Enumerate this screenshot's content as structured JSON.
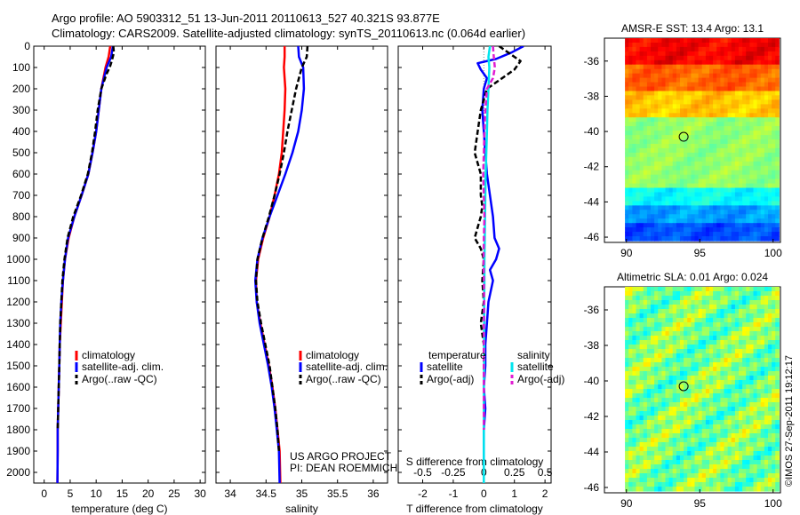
{
  "header": {
    "line1": "Argo profile: AO 5903312_51 13-Jun-2011 20110613_527 40.321S 93.877E",
    "line2": "Climatology: CARS2009. Satellite-adjusted climatology: synTS_20110613.nc (0.064d earlier)"
  },
  "project": {
    "line1": "US ARGO PROJECT",
    "line2": "PI: DEAN ROEMMICH"
  },
  "copyright": "©IMOS 27-Sep-2011 19:12:17",
  "colors": {
    "red": "#ff0000",
    "blue": "#0000ff",
    "black": "#000000",
    "cyan": "#00e5ee",
    "magenta": "#e01cd2"
  },
  "chart_data": [
    {
      "id": "temperature",
      "type": "line",
      "xlabel": "temperature (deg C)",
      "ylabel": "",
      "xlim": [
        -2,
        31
      ],
      "ylim": [
        2050,
        0
      ],
      "xticks": [
        0,
        5,
        10,
        15,
        20,
        25,
        30
      ],
      "yticks": [
        0,
        100,
        200,
        300,
        400,
        500,
        600,
        700,
        800,
        900,
        1000,
        1100,
        1200,
        1300,
        1400,
        1500,
        1600,
        1700,
        1800,
        1900,
        2000
      ],
      "legend": [
        "climatology",
        "satellite-adj. clim.",
        "Argo(..raw -QC)"
      ],
      "series": [
        {
          "name": "climatology",
          "color": "#ff0000",
          "dash": "",
          "x": [
            12.7,
            12.4,
            11.8,
            11.0,
            10.5,
            10.0,
            9.3,
            8.5,
            7.2,
            5.8,
            4.7,
            4.0,
            3.6,
            3.4,
            3.2,
            3.0,
            2.9,
            2.8,
            2.7,
            2.6,
            2.6,
            2.55
          ],
          "y": [
            0,
            50,
            100,
            200,
            300,
            400,
            500,
            600,
            700,
            800,
            900,
            1000,
            1100,
            1200,
            1300,
            1400,
            1500,
            1600,
            1700,
            1800,
            1900,
            2050
          ]
        },
        {
          "name": "satellite-adj. clim.",
          "color": "#0000ff",
          "dash": "",
          "x": [
            13.2,
            12.9,
            12.0,
            11.0,
            10.5,
            10.0,
            9.3,
            8.5,
            7.2,
            5.8,
            4.6,
            4.0,
            3.6,
            3.3,
            3.1,
            3.0,
            2.9,
            2.8,
            2.7,
            2.6,
            2.6,
            2.55
          ],
          "y": [
            0,
            50,
            100,
            200,
            300,
            400,
            500,
            600,
            700,
            800,
            900,
            1000,
            1100,
            1200,
            1300,
            1400,
            1500,
            1600,
            1700,
            1800,
            1900,
            2050
          ]
        },
        {
          "name": "Argo(..raw -QC)",
          "color": "#000000",
          "dash": "6,3",
          "x": [
            13.3,
            13.4,
            13.0,
            12.6,
            12.0,
            11.0,
            10.3,
            9.8,
            9.2,
            8.4,
            7.1,
            5.6,
            4.5,
            3.9,
            3.5,
            3.3,
            3.1,
            3.0,
            2.9,
            2.8,
            2.7,
            2.6
          ],
          "y": [
            0,
            30,
            70,
            100,
            130,
            200,
            300,
            400,
            500,
            600,
            700,
            800,
            900,
            1000,
            1100,
            1200,
            1300,
            1400,
            1500,
            1600,
            1700,
            1800
          ]
        }
      ]
    },
    {
      "id": "salinity",
      "type": "line",
      "xlabel": "salinity",
      "ylabel": "",
      "xlim": [
        33.8,
        36.2
      ],
      "ylim": [
        2050,
        0
      ],
      "xticks": [
        34,
        34.5,
        35,
        35.5,
        36
      ],
      "legend": [
        "climatology",
        "satellite-adj. clim.",
        "Argo(..raw -QC)"
      ],
      "series": [
        {
          "name": "climatology",
          "color": "#ff0000",
          "dash": "",
          "x": [
            34.76,
            34.76,
            34.75,
            34.77,
            34.76,
            34.74,
            34.72,
            34.68,
            34.62,
            34.55,
            34.46,
            34.39,
            34.36,
            34.37,
            34.42,
            34.48,
            34.54,
            34.59,
            34.63,
            34.66,
            34.69,
            34.7
          ],
          "y": [
            0,
            50,
            100,
            200,
            300,
            400,
            500,
            600,
            700,
            800,
            900,
            1000,
            1100,
            1200,
            1300,
            1400,
            1500,
            1600,
            1700,
            1800,
            1900,
            2050
          ]
        },
        {
          "name": "satellite-adj. clim.",
          "color": "#0000ff",
          "dash": "",
          "x": [
            34.95,
            34.96,
            35.02,
            35.03,
            35.0,
            34.95,
            34.87,
            34.77,
            34.66,
            34.55,
            34.45,
            34.38,
            34.35,
            34.37,
            34.41,
            34.47,
            34.53,
            34.58,
            34.62,
            34.65,
            34.68,
            34.69
          ],
          "y": [
            0,
            50,
            100,
            200,
            300,
            400,
            500,
            600,
            700,
            800,
            900,
            1000,
            1100,
            1200,
            1300,
            1400,
            1500,
            1600,
            1700,
            1800,
            1900,
            2050
          ]
        },
        {
          "name": "Argo(..raw -QC)",
          "color": "#000000",
          "dash": "6,3",
          "x": [
            35.08,
            35.07,
            35.0,
            34.92,
            34.86,
            34.8,
            34.75,
            34.69,
            34.62,
            34.54,
            34.45,
            34.38,
            34.36,
            34.38,
            34.43,
            34.49,
            34.55,
            34.59,
            34.63,
            34.66,
            34.68
          ],
          "y": [
            0,
            50,
            100,
            200,
            300,
            400,
            500,
            600,
            700,
            800,
            900,
            1000,
            1100,
            1200,
            1300,
            1400,
            1500,
            1600,
            1700,
            1800,
            1900
          ]
        }
      ]
    },
    {
      "id": "difference",
      "type": "line",
      "xlabel": "T difference from climatology",
      "xlabel_top": "S difference from climatology",
      "xlim": [
        -2.8,
        2.2
      ],
      "ylim": [
        2050,
        0
      ],
      "xticks": [
        -2,
        -1,
        0,
        1,
        2
      ],
      "xticks_top": [
        -0.5,
        -0.25,
        0,
        0.25,
        0.5
      ],
      "legend_titles": [
        "temperature",
        "salinity"
      ],
      "legend": [
        "satellite",
        "Argo(-adj)",
        "satellite",
        "Argo(-adj)"
      ],
      "series": [
        {
          "name": "temperature satellite",
          "color": "#0000ff",
          "dash": "",
          "x": [
            1.3,
            0.9,
            0.4,
            -0.2,
            -0.1,
            0.1,
            0.0,
            -0.05,
            0.0,
            0.05,
            0.1,
            0.2,
            0.3,
            0.35,
            0.5,
            0.4,
            0.2,
            0.3,
            0.15,
            0.1,
            0.05,
            0.05,
            0.0,
            0.05,
            0.0,
            0.0
          ],
          "y": [
            0,
            30,
            60,
            80,
            110,
            150,
            200,
            300,
            400,
            500,
            600,
            700,
            800,
            900,
            950,
            1000,
            1050,
            1100,
            1200,
            1300,
            1400,
            1500,
            1600,
            1700,
            1800,
            1950
          ]
        },
        {
          "name": "temperature Argo(-adj)",
          "color": "#000000",
          "dash": "6,3",
          "x": [
            0.5,
            0.8,
            1.2,
            1.0,
            0.1,
            -0.1,
            -0.2,
            -0.3,
            -0.1,
            -0.1,
            -0.05,
            -0.1,
            -0.2,
            -0.3,
            -0.1,
            0.0,
            -0.05,
            0.0,
            -0.1,
            0.0,
            0.0,
            0.0,
            0.0
          ],
          "y": [
            0,
            30,
            70,
            110,
            200,
            300,
            400,
            500,
            600,
            700,
            750,
            800,
            850,
            900,
            950,
            1000,
            1100,
            1200,
            1300,
            1400,
            1500,
            1600,
            1800
          ]
        },
        {
          "name": "salinity satellite",
          "color": "#00e5ee",
          "dash": "",
          "x": [
            0.2,
            0.15,
            0.18,
            0.15,
            0.12,
            0.1,
            0.08,
            0.06,
            0.05,
            0.04,
            0.03,
            0.02,
            0.02,
            0.01,
            0.01,
            0.01,
            0.01,
            0.0,
            0.0,
            0.0,
            0.0,
            0.0
          ],
          "y": [
            0,
            50,
            100,
            200,
            300,
            400,
            500,
            600,
            700,
            800,
            900,
            1000,
            1100,
            1200,
            1300,
            1400,
            1500,
            1600,
            1700,
            1800,
            1900,
            2050
          ]
        },
        {
          "name": "salinity Argo(-adj)",
          "color": "#e01cd2",
          "dash": "6,3",
          "x": [
            0.3,
            0.32,
            0.36,
            0.3,
            0.1,
            0.05,
            0.02,
            0.0,
            -0.02,
            0.0,
            0.02,
            0.0,
            -0.01,
            0.0,
            0.01,
            0.0,
            0.0,
            0.0,
            0.0,
            0.0,
            0.0
          ],
          "y": [
            0,
            40,
            100,
            150,
            200,
            300,
            400,
            500,
            600,
            700,
            800,
            900,
            1000,
            1100,
            1200,
            1300,
            1400,
            1500,
            1600,
            1700,
            1800
          ]
        }
      ]
    },
    {
      "id": "sst-map",
      "type": "heatmap",
      "title": "AMSR-E SST: 13.4 Argo: 13.1",
      "xlim": [
        88.5,
        100.5
      ],
      "ylim": [
        -46.3,
        -34.7
      ],
      "xticks": [
        90,
        95,
        100
      ],
      "yticks": [
        -36,
        -38,
        -40,
        -42,
        -44,
        -46
      ],
      "marker": {
        "lon": 93.9,
        "lat": -40.3
      }
    },
    {
      "id": "sla-map",
      "type": "heatmap",
      "title": "Altimetric SLA: 0.01 Argo: 0.024",
      "xlim": [
        88.5,
        100.5
      ],
      "ylim": [
        -46.3,
        -34.7
      ],
      "xticks": [
        90,
        95,
        100
      ],
      "yticks": [
        -36,
        -38,
        -40,
        -42,
        -44,
        -46
      ],
      "marker": {
        "lon": 93.9,
        "lat": -40.3
      }
    }
  ]
}
